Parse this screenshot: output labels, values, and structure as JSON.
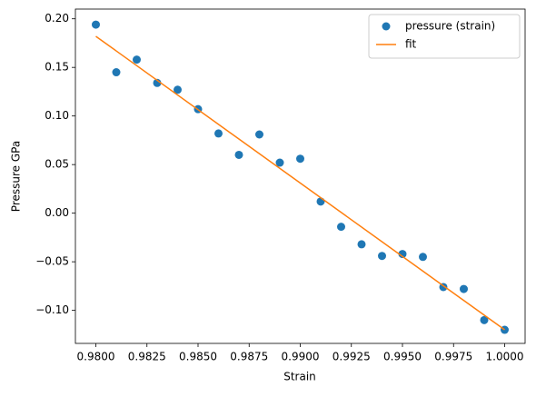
{
  "chart_data": {
    "type": "scatter",
    "xlabel": "Strain",
    "ylabel": "Pressure GPa",
    "xlim": [
      0.979,
      1.001
    ],
    "ylim": [
      -0.134,
      0.21
    ],
    "xticks": [
      {
        "value": 0.98,
        "label": "0.9800"
      },
      {
        "value": 0.9825,
        "label": "0.9825"
      },
      {
        "value": 0.985,
        "label": "0.9850"
      },
      {
        "value": 0.9875,
        "label": "0.9875"
      },
      {
        "value": 0.99,
        "label": "0.9900"
      },
      {
        "value": 0.9925,
        "label": "0.9925"
      },
      {
        "value": 0.995,
        "label": "0.9950"
      },
      {
        "value": 0.9975,
        "label": "0.9975"
      },
      {
        "value": 1.0,
        "label": "1.0000"
      }
    ],
    "yticks": [
      {
        "value": -0.1,
        "label": "−0.10"
      },
      {
        "value": -0.05,
        "label": "−0.05"
      },
      {
        "value": 0,
        "label": "0.00"
      },
      0.05,
      {
        "value": 0.1,
        "label": "0.10"
      },
      0.15,
      {
        "value": 0.2,
        "label": "0.20"
      }
    ],
    "legend": "upper right",
    "series": [
      {
        "name": "pressure (strain)",
        "type": "scatter",
        "color": "#1f77b4",
        "x": [
          0.98,
          0.981,
          0.982,
          0.983,
          0.984,
          0.985,
          0.986,
          0.987,
          0.988,
          0.989,
          0.99,
          0.991,
          0.992,
          0.993,
          0.994,
          0.995,
          0.996,
          0.997,
          0.998,
          0.999,
          1.0
        ],
        "values": [
          0.194,
          0.145,
          0.158,
          0.134,
          0.127,
          0.107,
          0.082,
          0.06,
          0.081,
          0.052,
          0.056,
          0.012,
          -0.014,
          -0.032,
          -0.044,
          -0.042,
          -0.045,
          -0.076,
          -0.078,
          -0.11,
          -0.12
        ]
      },
      {
        "name": "fit",
        "type": "line",
        "color": "#ff7f0e",
        "x": [
          0.98,
          1.0
        ],
        "values": [
          0.182,
          -0.12
        ]
      }
    ]
  }
}
